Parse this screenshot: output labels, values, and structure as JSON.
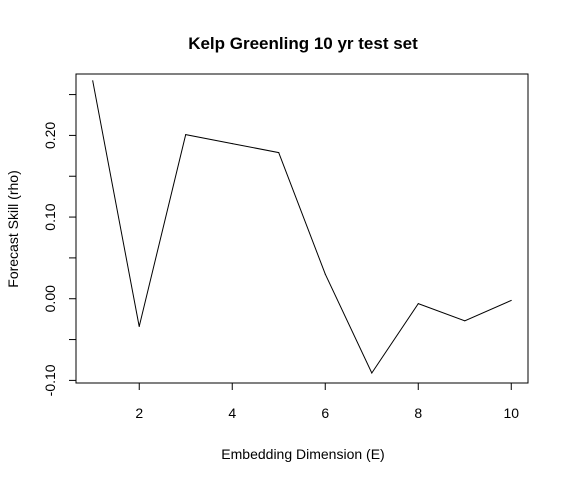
{
  "chart_data": {
    "type": "line",
    "title": "Kelp Greenling 10 yr test set",
    "xlabel": "Embedding Dimension (E)",
    "ylabel": "Forecast Skill (rho)",
    "x": [
      1,
      2,
      3,
      4,
      5,
      6,
      7,
      8,
      9,
      10
    ],
    "series": [
      {
        "values": [
          0.267,
          -0.034,
          0.201,
          0.19,
          0.179,
          0.03,
          -0.091,
          -0.006,
          -0.027,
          -0.002
        ]
      }
    ],
    "xlim": [
      0.64,
      10.36
    ],
    "ylim": [
      -0.1032,
      0.2752
    ],
    "xticks": [
      2,
      4,
      6,
      8,
      10
    ],
    "xtick_labels": [
      "2",
      "4",
      "6",
      "8",
      "10"
    ],
    "yticks": [
      -0.1,
      -0.05,
      0.0,
      0.05,
      0.1,
      0.15,
      0.2,
      0.25
    ],
    "ytick_labels": [
      "-0.10",
      "0.00",
      "0.10",
      "0.20"
    ],
    "ytick_labeled": [
      true,
      false,
      true,
      false,
      true,
      false,
      true,
      false
    ],
    "grid": false,
    "line_color": "#000000"
  }
}
